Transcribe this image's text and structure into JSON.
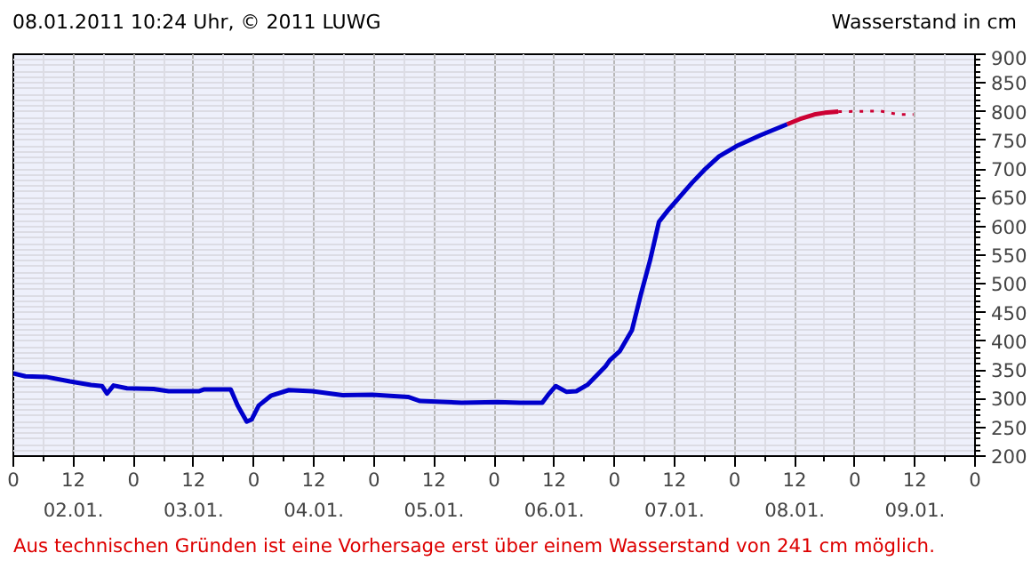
{
  "chart_data": {
    "type": "line",
    "title": "08.01.2011 10:24 Uhr, © 2011 LUWG",
    "ylabel": "Wasserstand in cm",
    "annotations": [
      "Aus technischen Gründen ist eine Vorhersage erst über einem Wasserstand von 241 cm möglich."
    ],
    "xlim": [
      "2011-01-02T00:00",
      "2011-01-10T00:00"
    ],
    "ylim": [
      200,
      900
    ],
    "xticks": [
      {
        "value": "2011-01-02T00:00",
        "label": "0"
      },
      {
        "value": "2011-01-02T12:00",
        "label": "12"
      },
      {
        "value": "2011-01-03T00:00",
        "label": "0"
      },
      {
        "value": "2011-01-03T12:00",
        "label": "12"
      },
      {
        "value": "2011-01-04T00:00",
        "label": "0"
      },
      {
        "value": "2011-01-04T12:00",
        "label": "12"
      },
      {
        "value": "2011-01-05T00:00",
        "label": "0"
      },
      {
        "value": "2011-01-05T12:00",
        "label": "12"
      },
      {
        "value": "2011-01-06T00:00",
        "label": "0"
      },
      {
        "value": "2011-01-06T12:00",
        "label": "12"
      },
      {
        "value": "2011-01-07T00:00",
        "label": "0"
      },
      {
        "value": "2011-01-07T12:00",
        "label": "12"
      },
      {
        "value": "2011-01-08T00:00",
        "label": "0"
      },
      {
        "value": "2011-01-08T12:00",
        "label": "12"
      },
      {
        "value": "2011-01-09T00:00",
        "label": "0"
      },
      {
        "value": "2011-01-09T12:00",
        "label": "12"
      },
      {
        "value": "2011-01-10T00:00",
        "label": "0"
      }
    ],
    "x2lim": [
      "2011-01-02T00:00",
      "2011-01-10T00:00"
    ],
    "x2ticks": [
      {
        "value": "2011-01-02T12:00",
        "label": "02.01."
      },
      {
        "value": "2011-01-03T12:00",
        "label": "03.01."
      },
      {
        "value": "2011-01-04T12:00",
        "label": "04.01."
      },
      {
        "value": "2011-01-05T12:00",
        "label": "05.01."
      },
      {
        "value": "2011-01-06T12:00",
        "label": "06.01."
      },
      {
        "value": "2011-01-07T12:00",
        "label": "07.01."
      },
      {
        "value": "2011-01-08T12:00",
        "label": "08.01."
      },
      {
        "value": "2011-01-09T12:00",
        "label": "09.01."
      }
    ],
    "yticks": [
      200,
      250,
      300,
      350,
      400,
      450,
      500,
      550,
      600,
      650,
      700,
      750,
      800,
      850,
      900
    ],
    "grid": true,
    "marker": "none",
    "series": [
      {
        "color": "#0000cc",
        "line_style": "solid",
        "x": [
          "2011-01-02T00:00",
          "2011-01-02T02:24",
          "2011-01-02T06:30",
          "2011-01-02T11:18",
          "2011-01-02T15:30",
          "2011-01-02T17:42",
          "2011-01-02T18:42",
          "2011-01-02T20:00",
          "2011-01-02T22:42",
          "2011-01-03T04:00",
          "2011-01-03T07:00",
          "2011-01-03T13:00",
          "2011-01-03T14:00",
          "2011-01-03T19:24",
          "2011-01-03T20:48",
          "2011-01-03T22:36",
          "2011-01-03T23:36",
          "2011-01-04T01:00",
          "2011-01-04T03:24",
          "2011-01-04T07:00",
          "2011-01-04T11:42",
          "2011-01-04T17:42",
          "2011-01-04T23:42",
          "2011-01-05T06:48",
          "2011-01-05T09:12",
          "2011-01-05T17:30",
          "2011-01-06T00:36",
          "2011-01-06T05:12",
          "2011-01-06T09:36",
          "2011-01-06T10:48",
          "2011-01-06T12:18",
          "2011-01-06T14:24",
          "2011-01-06T16:24",
          "2011-01-06T18:36",
          "2011-01-06T22:12",
          "2011-01-06T23:06",
          "2011-01-07T01:06",
          "2011-01-07T03:30",
          "2011-01-07T05:18",
          "2011-01-07T07:06",
          "2011-01-07T08:54",
          "2011-01-07T10:42",
          "2011-01-07T13:06",
          "2011-01-07T15:30",
          "2011-01-07T17:54",
          "2011-01-07T20:54",
          "2011-01-08T00:24",
          "2011-01-08T05:12",
          "2011-01-08T10:30"
        ],
        "values": [
          344,
          339,
          338,
          330,
          324,
          322,
          309,
          323,
          318,
          317,
          313,
          313,
          316,
          316,
          288,
          260,
          264,
          288,
          305,
          315,
          313,
          306,
          307,
          303,
          296,
          293,
          294,
          293,
          293,
          307,
          322,
          312,
          313,
          324,
          356,
          367,
          383,
          419,
          482,
          540,
          608,
          628,
          652,
          676,
          698,
          722,
          740,
          759,
          778
        ]
      },
      {
        "color": "#cc0033",
        "line_style": "solid",
        "x": [
          "2011-01-08T10:30",
          "2011-01-08T13:00",
          "2011-01-08T15:54",
          "2011-01-08T18:00",
          "2011-01-08T20:42"
        ],
        "values": [
          778,
          787,
          795,
          798,
          800
        ]
      },
      {
        "color": "#cc0033",
        "line_style": "dotted",
        "x": [
          "2011-01-08T20:42",
          "2011-01-09T05:06",
          "2011-01-09T08:42",
          "2011-01-09T11:42"
        ],
        "values": [
          800,
          801,
          795,
          795
        ]
      }
    ]
  }
}
